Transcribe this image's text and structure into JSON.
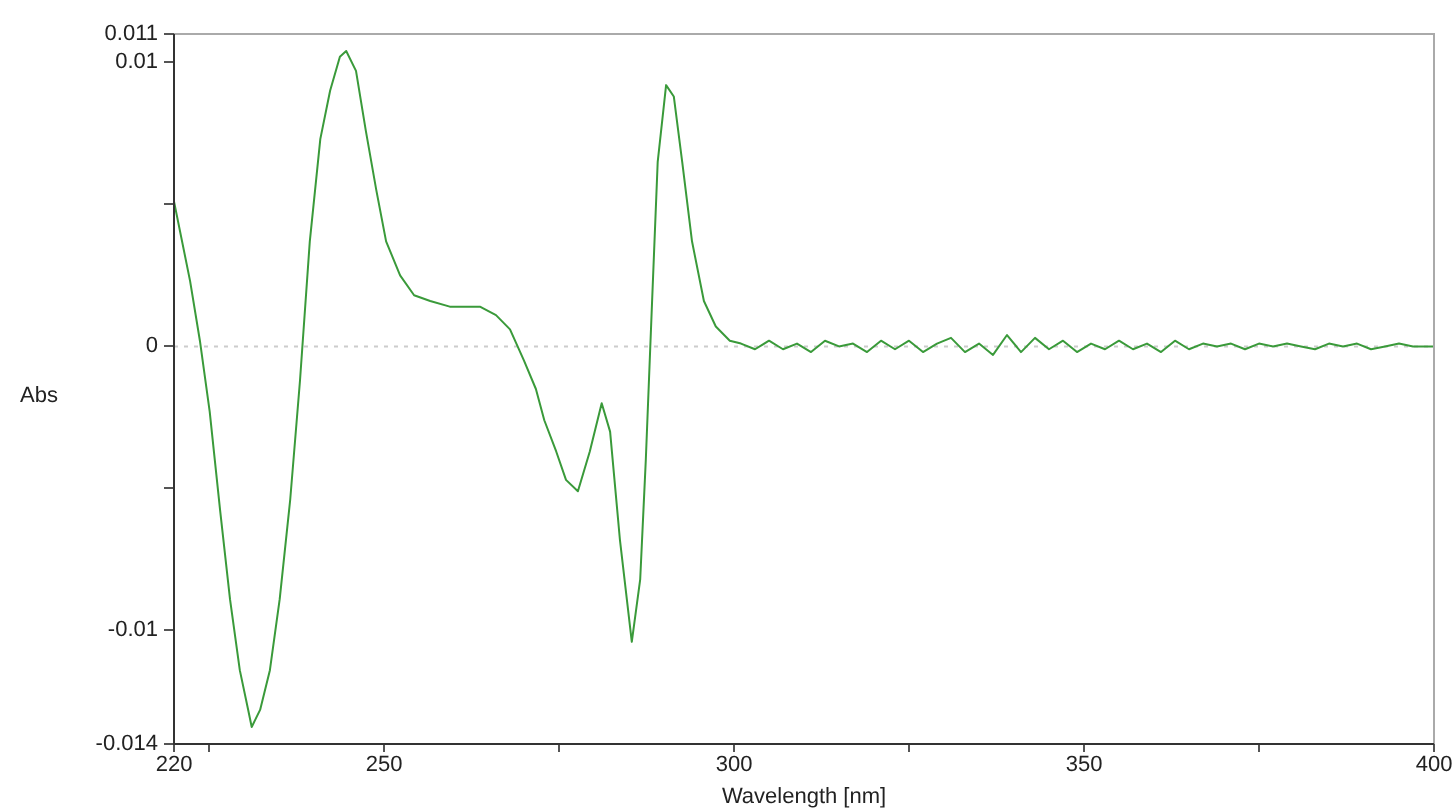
{
  "chart_data": {
    "type": "line",
    "xlabel": "Wavelength [nm]",
    "ylabel": "Abs",
    "xlim": [
      220,
      400
    ],
    "xticks": [
      220,
      {
        "value": 225,
        "label": null
      },
      250,
      {
        "value": 275,
        "label": null
      },
      300,
      {
        "value": 325,
        "label": null
      },
      350,
      {
        "value": 375,
        "label": null
      },
      400
    ],
    "ylim": [
      -0.014,
      0.011
    ],
    "yticks": [
      -0.014,
      -0.01,
      {
        "value": -0.005,
        "label": null
      },
      0,
      {
        "value": 0.005,
        "label": null
      },
      0.01,
      0.011
    ],
    "grid": false,
    "legend": false,
    "marker": "none",
    "line_style": "solid",
    "ref_lines": [
      {
        "axis": "y",
        "value": 0,
        "color": "#cccccc",
        "line_style": "dotted"
      }
    ],
    "series": [
      {
        "color": "#3a9a3a",
        "x": [
          220,
          222.3,
          223.7,
          225.1,
          226.6,
          228,
          229.4,
          230.6,
          231.1,
          232.3,
          233.7,
          235.1,
          236.6,
          238,
          239.4,
          240.9,
          242.3,
          243.7,
          244.6,
          246,
          247.4,
          248.9,
          250.3,
          252.3,
          254.3,
          256.6,
          259.4,
          263.7,
          266,
          268,
          270,
          271.7,
          272.9,
          274.6,
          276,
          277.7,
          279.4,
          281.1,
          282.3,
          283.7,
          285.4,
          286.6,
          287.4,
          288.3,
          289.1,
          290.3,
          291.4,
          292.6,
          294,
          295.7,
          297.4,
          299.4,
          301,
          303,
          305,
          307,
          309,
          311,
          313,
          315,
          317,
          319,
          321,
          323,
          325,
          327,
          329,
          331,
          333,
          335,
          337,
          339,
          341,
          343,
          345,
          347,
          349,
          351,
          353,
          355,
          357,
          359,
          361,
          363,
          365,
          367,
          369,
          371,
          373,
          375,
          377,
          379,
          381,
          383,
          385,
          387,
          389,
          391,
          393,
          395,
          397,
          399,
          400
        ],
        "values": [
          0.0051,
          0.0023,
          0.0002,
          -0.0023,
          -0.0058,
          -0.0089,
          -0.0114,
          -0.0128,
          -0.0134,
          -0.0128,
          -0.0114,
          -0.0089,
          -0.0054,
          -0.0012,
          0.0037,
          0.0073,
          0.009,
          0.0102,
          0.0104,
          0.0097,
          0.0076,
          0.0055,
          0.0037,
          0.0025,
          0.0018,
          0.0016,
          0.0014,
          0.0014,
          0.0011,
          0.0006,
          -0.0005,
          -0.0015,
          -0.0026,
          -0.0037,
          -0.0047,
          -0.0051,
          -0.0037,
          -0.002,
          -0.003,
          -0.0068,
          -0.0104,
          -0.0082,
          -0.004,
          0.0016,
          0.0065,
          0.0092,
          0.0088,
          0.0065,
          0.0037,
          0.0016,
          0.0007,
          0.0002,
          0.0001,
          -0.0001,
          0.0002,
          -0.0001,
          0.0001,
          -0.0002,
          0.0002,
          0,
          0.0001,
          -0.0002,
          0.0002,
          -0.0001,
          0.0002,
          -0.0002,
          0.0001,
          0.0003,
          -0.0002,
          0.0001,
          -0.0003,
          0.0004,
          -0.0002,
          0.0003,
          -0.0001,
          0.0002,
          -0.0002,
          0.0001,
          -0.0001,
          0.0002,
          -0.0001,
          0.0001,
          -0.0002,
          0.0002,
          -0.0001,
          0.0001,
          0,
          0.0001,
          -0.0001,
          0.0001,
          0,
          0.0001,
          0,
          -0.0001,
          0.0001,
          0,
          0.0001,
          -0.0001,
          0,
          0.0001,
          0,
          0,
          0
        ]
      }
    ]
  }
}
